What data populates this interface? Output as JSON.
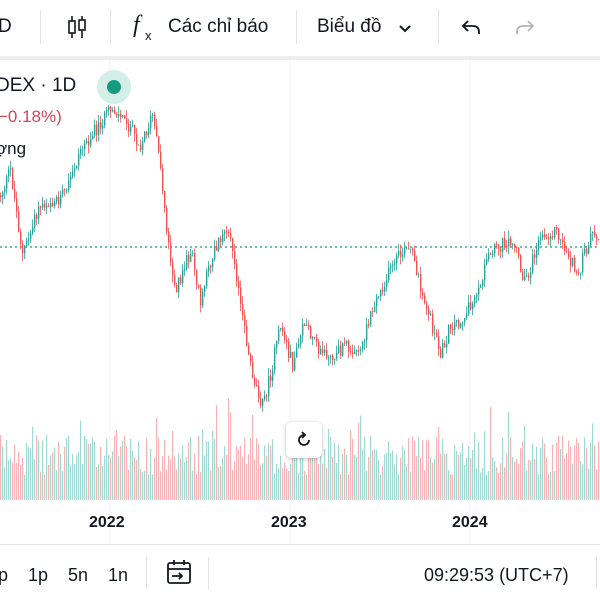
{
  "toolbar": {
    "symbol_fragment": "D",
    "indicators_label": "Các chỉ báo",
    "chart_label": "Biểu đồ",
    "icons": [
      "candlestick-icon",
      "function-icon",
      "chevron-down-icon",
      "undo-icon",
      "redo-icon"
    ]
  },
  "legend": {
    "title": "DEX · 1D",
    "change": "−0.18%)",
    "volume_label": "ợng"
  },
  "chart": {
    "type": "candlestick",
    "x_labels": [
      "2022",
      "2023",
      "2024"
    ],
    "up_color": "#26a69a",
    "down_color": "#ef5350",
    "baseline_color": "#159c80",
    "live_indicator_color": "#159c80"
  },
  "bottom_bar": {
    "ranges": [
      "p",
      "1p",
      "5n",
      "1n"
    ],
    "time": "09:29:53 (UTC+7)",
    "icons": [
      "go-to-date-icon"
    ]
  }
}
